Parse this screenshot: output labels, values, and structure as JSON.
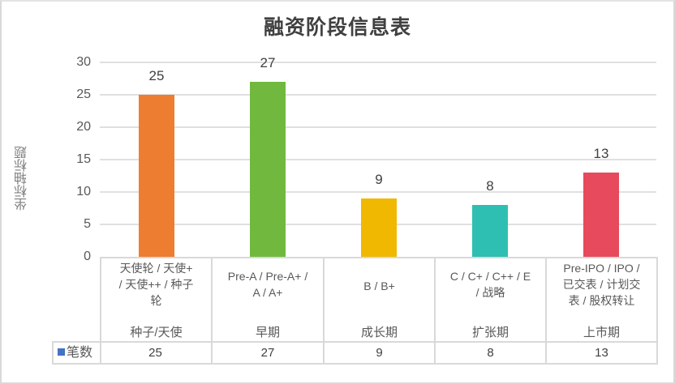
{
  "chart_data": {
    "type": "bar",
    "title": "融资阶段信息表",
    "xlabel": "",
    "ylabel": "坐标轴标题",
    "ylim": [
      0,
      30
    ],
    "yticks": [
      0,
      5,
      10,
      15,
      20,
      25,
      30
    ],
    "grid": true,
    "legend_position": "data-table",
    "categories": [
      {
        "group": "种子/天使",
        "detail": "天使轮 / 天使+ / 天使++ / 种子轮"
      },
      {
        "group": "早期",
        "detail": "Pre-A / Pre-A+ / A / A+"
      },
      {
        "group": "成长期",
        "detail": "B / B+"
      },
      {
        "group": "扩张期",
        "detail": "C / C+ / C++ / E / 战略"
      },
      {
        "group": "上市期",
        "detail": "Pre-IPO / IPO / 已交表 / 计划交表 / 股权转让"
      }
    ],
    "series": [
      {
        "name": "笔数",
        "color": "#4472c4",
        "values": [
          25,
          27,
          9,
          8,
          13
        ]
      }
    ],
    "bar_colors": [
      "#ed7d31",
      "#70b93e",
      "#f0b800",
      "#2ebfb2",
      "#e64a5c"
    ]
  },
  "title": "融资阶段信息表",
  "y_axis_title": "坐标轴标题",
  "y_ticks": [
    "30",
    "25",
    "20",
    "15",
    "10",
    "5",
    "0"
  ],
  "bars": [
    {
      "value": "25",
      "detail_lines": [
        "天使轮 / 天使+",
        "/ 天使++ / 种子",
        "轮"
      ],
      "group": "种子/天使"
    },
    {
      "value": "27",
      "detail_lines": [
        "Pre-A / Pre-A+ /",
        "A / A+"
      ],
      "group": "早期"
    },
    {
      "value": "9",
      "detail_lines": [
        "B / B+"
      ],
      "group": "成长期"
    },
    {
      "value": "8",
      "detail_lines": [
        "C / C+ / C++ / E",
        "/ 战略"
      ],
      "group": "扩张期"
    },
    {
      "value": "13",
      "detail_lines": [
        "Pre-IPO / IPO /",
        "已交表 / 计划交",
        "表 / 股权转让"
      ],
      "group": "上市期"
    }
  ],
  "legend": {
    "label": "笔数"
  }
}
